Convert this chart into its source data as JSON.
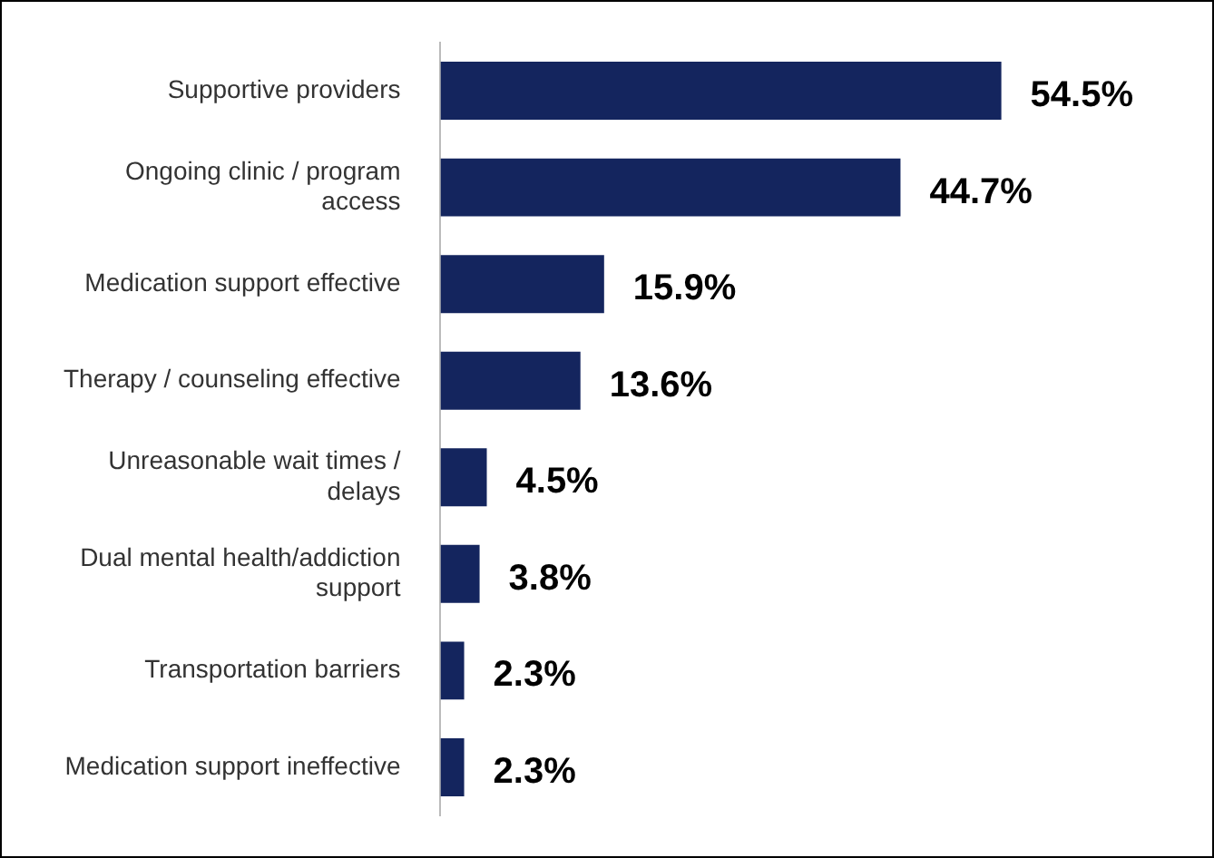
{
  "chart_data": {
    "type": "bar",
    "orientation": "horizontal",
    "categories": [
      "Supportive providers",
      "Ongoing clinic / program access",
      "Medication support effective",
      "Therapy / counseling effective",
      "Unreasonable wait times / delays",
      "Dual mental health/addiction support",
      "Transportation barriers",
      "Medication support ineffective"
    ],
    "values": [
      54.5,
      44.7,
      15.9,
      13.6,
      4.5,
      3.8,
      2.3,
      2.3
    ],
    "value_labels": [
      "54.5%",
      "44.7%",
      "15.9%",
      "13.6%",
      "4.5%",
      "3.8%",
      "2.3%",
      "2.3%"
    ],
    "color": "#14255e",
    "legend": false,
    "tick_labels": "y"
  }
}
